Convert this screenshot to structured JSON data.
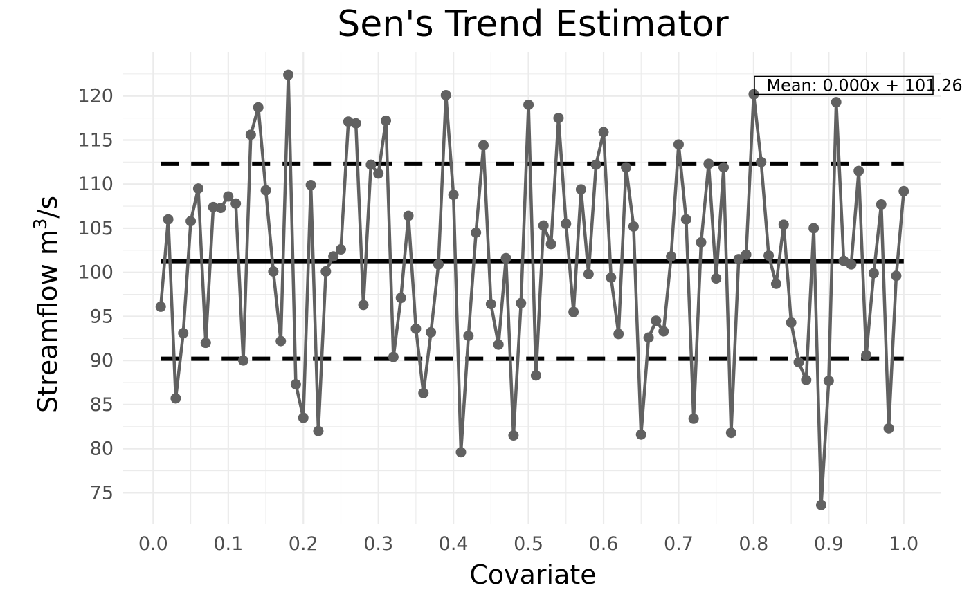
{
  "chart_data": {
    "type": "line",
    "title": "Sen's Trend Estimator",
    "xlabel": "Covariate",
    "ylabel": {
      "prefix": "Streamflow m",
      "sup": "3",
      "suffix": "/s"
    },
    "xlim": [
      -0.04,
      1.05
    ],
    "ylim": [
      71.5,
      125
    ],
    "xticks": [
      "0.0",
      "0.1",
      "0.2",
      "0.3",
      "0.4",
      "0.5",
      "0.6",
      "0.7",
      "0.8",
      "0.9",
      "1.0"
    ],
    "yticks": [
      "75",
      "80",
      "85",
      "90",
      "95",
      "100",
      "105",
      "110",
      "115",
      "120"
    ],
    "grid": true,
    "annotation": {
      "text": "Mean: 0.000x + 101.26",
      "x": 0.92,
      "y": 121.2
    },
    "colors": {
      "series": "#616161",
      "trend": "#000000",
      "grid": "#ebebeb"
    },
    "series": [
      {
        "x": [
          0.01,
          0.02,
          0.03,
          0.04,
          0.05,
          0.06,
          0.07,
          0.08,
          0.09,
          0.1,
          0.11,
          0.12,
          0.13,
          0.14,
          0.15,
          0.16,
          0.17,
          0.18,
          0.19,
          0.2,
          0.21,
          0.22,
          0.23,
          0.24,
          0.25,
          0.26,
          0.27,
          0.28,
          0.29,
          0.3,
          0.31,
          0.32,
          0.33,
          0.34,
          0.35,
          0.36,
          0.37,
          0.38,
          0.39,
          0.4,
          0.41,
          0.42,
          0.43,
          0.44,
          0.45,
          0.46,
          0.47,
          0.48,
          0.49,
          0.5,
          0.51,
          0.52,
          0.53,
          0.54,
          0.55,
          0.56,
          0.57,
          0.58,
          0.59,
          0.6,
          0.61,
          0.62,
          0.63,
          0.64,
          0.65,
          0.66,
          0.67,
          0.68,
          0.69,
          0.7,
          0.71,
          0.72,
          0.73,
          0.74,
          0.75,
          0.76,
          0.77,
          0.78,
          0.79,
          0.8,
          0.81,
          0.82,
          0.83,
          0.84,
          0.85,
          0.86,
          0.87,
          0.88,
          0.89,
          0.9,
          0.91,
          0.92,
          0.93,
          0.94,
          0.95,
          0.96,
          0.97,
          0.98,
          0.99,
          1.0
        ],
        "y": [
          96.1,
          106.0,
          85.7,
          93.1,
          105.8,
          109.5,
          92.0,
          107.4,
          107.3,
          108.6,
          107.8,
          90.0,
          115.6,
          118.7,
          109.3,
          100.1,
          92.2,
          122.4,
          87.3,
          83.5,
          109.9,
          82.0,
          100.1,
          101.8,
          102.6,
          117.1,
          116.9,
          96.3,
          112.2,
          111.2,
          117.2,
          90.4,
          97.1,
          106.4,
          93.6,
          86.3,
          93.2,
          100.9,
          120.1,
          108.8,
          79.6,
          92.8,
          104.5,
          114.4,
          96.4,
          91.8,
          101.6,
          81.5,
          96.5,
          119.0,
          88.3,
          105.3,
          103.2,
          117.5,
          105.5,
          95.5,
          109.4,
          99.8,
          112.2,
          115.9,
          99.4,
          93.0,
          111.9,
          105.2,
          81.6,
          92.6,
          94.5,
          93.3,
          101.8,
          114.5,
          106.0,
          83.4,
          103.4,
          112.3,
          99.3,
          111.9,
          81.8,
          101.5,
          102.0,
          120.2,
          112.5,
          101.9,
          98.7,
          105.4,
          94.3,
          89.8,
          87.8,
          105.0,
          73.6,
          87.7,
          119.3,
          101.3,
          100.9,
          111.5,
          90.6,
          99.9,
          107.7,
          82.3,
          99.6,
          109.2
        ]
      }
    ],
    "trend_lines": [
      {
        "style": "solid",
        "x": [
          0.01,
          1.0
        ],
        "y": [
          101.26,
          101.26
        ]
      },
      {
        "style": "dashed",
        "x": [
          0.01,
          1.0
        ],
        "y": [
          112.3,
          112.3
        ]
      },
      {
        "style": "dashed",
        "x": [
          0.01,
          1.0
        ],
        "y": [
          90.2,
          90.2
        ]
      }
    ]
  }
}
